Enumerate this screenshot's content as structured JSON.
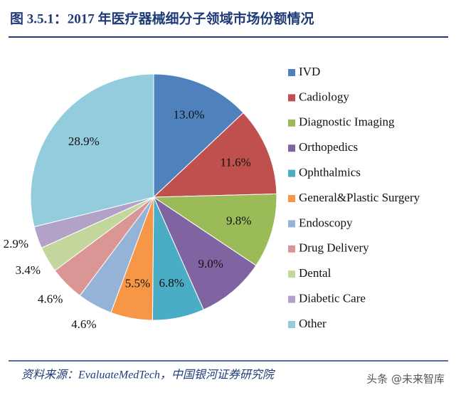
{
  "chart_data": {
    "type": "pie",
    "title": "图 3.5.1：2017 年医疗器械细分子领域市场份额情况",
    "categories": [
      "IVD",
      "Cadiology",
      "Diagnostic Imaging",
      "Orthopedics",
      "Ophthalmics",
      "General&Plastic Surgery",
      "Endoscopy",
      "Drug Delivery",
      "Dental",
      "Diabetic Care",
      "Other"
    ],
    "values": [
      13.0,
      11.6,
      9.8,
      9.0,
      6.8,
      5.5,
      4.6,
      4.6,
      3.4,
      2.9,
      28.9
    ],
    "value_labels": [
      "13.0%",
      "11.6%",
      "9.8%",
      "9.0%",
      "6.8%",
      "5.5%",
      "4.6%",
      "4.6%",
      "3.4%",
      "2.9%",
      "28.9%"
    ],
    "colors": [
      "#4f81bd",
      "#c0504d",
      "#9bbb59",
      "#8064a2",
      "#4bacc6",
      "#f79646",
      "#95b3d7",
      "#da9694",
      "#c3d69b",
      "#b3a2c7",
      "#93cddd"
    ],
    "legend": "right"
  },
  "footer": {
    "source": "资料来源：EvaluateMedTech，中国银河证券研究院",
    "watermark": "头条 @未来智库"
  }
}
